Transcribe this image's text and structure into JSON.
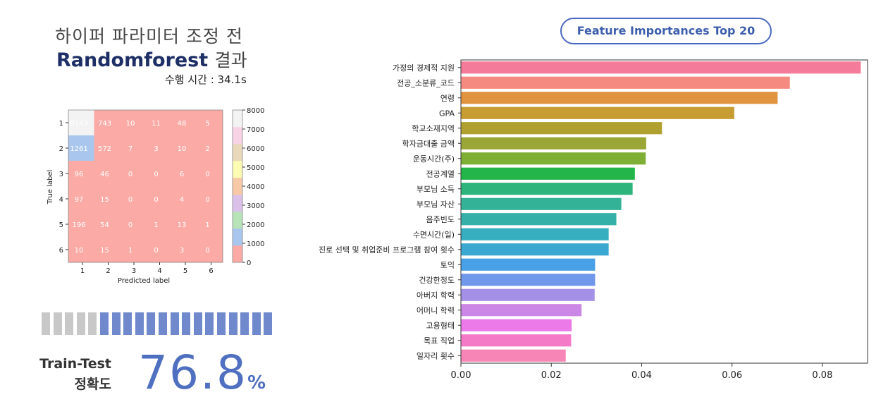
{
  "header": {
    "title_ko": "하이퍼 파라미터 조정 전",
    "title_model": "Randomforest",
    "title_suffix": "결과",
    "runtime": "수행 시간 : 34.1s"
  },
  "accuracy": {
    "label_1": "Train-Test",
    "label_2": "정확도",
    "value": "76.8",
    "unit": "%",
    "segments_total": 20,
    "segments_filled": 5,
    "color_filled": "#c8c8c8",
    "color_empty": "#7088cc"
  },
  "chart_data": [
    {
      "type": "heatmap",
      "xlabel": "Predicted label",
      "ylabel": "True label",
      "x_tick_labels": [
        "1",
        "2",
        "3",
        "4",
        "5",
        "6"
      ],
      "y_tick_labels": [
        "1",
        "2",
        "3",
        "4",
        "5",
        "6"
      ],
      "values": [
        [
          8143,
          743,
          10,
          11,
          48,
          5
        ],
        [
          1261,
          572,
          7,
          3,
          10,
          2
        ],
        [
          96,
          46,
          0,
          0,
          6,
          0
        ],
        [
          97,
          15,
          0,
          0,
          4,
          0
        ],
        [
          196,
          54,
          0,
          1,
          13,
          1
        ],
        [
          10,
          15,
          1,
          0,
          3,
          0
        ]
      ],
      "colorbar": {
        "range": [
          0,
          8000
        ],
        "ticks": [
          "0",
          "1000",
          "2000",
          "3000",
          "4000",
          "5000",
          "6000",
          "7000",
          "8000"
        ],
        "colors": [
          "#fbaaa5",
          "#a9c6ee",
          "#b8e3b8",
          "#dbc1e9",
          "#f7c9a6",
          "#fcfcb3",
          "#ead8bb",
          "#f8d3e6",
          "#f3f3f3"
        ]
      }
    },
    {
      "type": "bar",
      "orientation": "horizontal",
      "title": "Feature Importances Top 20",
      "categories": [
        "가정의 경제적 지원",
        "전공_소분류_코드",
        "연령",
        "GPA",
        "학교소재지역",
        "학자금대출 금액",
        "운동시간(주)",
        "전공계열",
        "부모님 소득",
        "부모님 자산",
        "음주빈도",
        "수면시간(일)",
        "진로 선택 및 취업준비 프로그램 참여 횟수",
        "토익",
        "건강한정도",
        "아버지 학력",
        "어머니 학력",
        "고용형태",
        "목표 직업",
        "일자리 횟수"
      ],
      "values": [
        0.0885,
        0.0728,
        0.0701,
        0.0605,
        0.0445,
        0.041,
        0.0409,
        0.0385,
        0.038,
        0.0355,
        0.0344,
        0.0327,
        0.0327,
        0.0297,
        0.0297,
        0.0296,
        0.0267,
        0.0245,
        0.0244,
        0.0232
      ],
      "colors": [
        "#f57b9b",
        "#f58a80",
        "#e09440",
        "#c69c33",
        "#b0a030",
        "#9aa635",
        "#7fae35",
        "#24b54a",
        "#2db47c",
        "#33b298",
        "#34b0a8",
        "#36aec0",
        "#3aa8d0",
        "#48a0e6",
        "#6f98ea",
        "#a590e8",
        "#cc87e6",
        "#ec7ae8",
        "#f47ac8",
        "#f786b6"
      ],
      "xlim": [
        0,
        0.09
      ],
      "x_ticks": [
        "0.00",
        "0.02",
        "0.04",
        "0.06",
        "0.08"
      ]
    }
  ]
}
